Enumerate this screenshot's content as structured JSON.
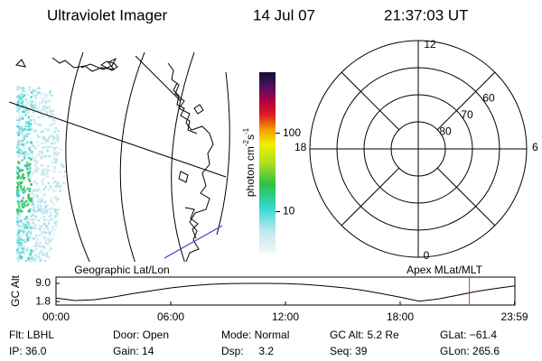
{
  "header": {
    "title": "Ultraviolet Imager",
    "date": "14 Jul 07",
    "time": "21:37:03 UT"
  },
  "map": {
    "label": "Geographic Lat/Lon"
  },
  "colorbar": {
    "label": [
      "photon cm",
      "-2",
      "s",
      "-1"
    ],
    "log": true,
    "range": [
      3,
      600
    ],
    "ticks": [
      10,
      100
    ]
  },
  "polar": {
    "label": "Apex MLat/MLT",
    "mlt_labels": [
      "12",
      "6",
      "0",
      "18"
    ],
    "lat_range": [
      90,
      50
    ],
    "lat_ticks": [
      80,
      70,
      60
    ]
  },
  "altitude_plot": {
    "ylabel": "GC Alt",
    "xlim": [
      0,
      24
    ],
    "ylim": [
      0.4,
      11.5
    ],
    "yticks": [
      {
        "value": 9,
        "label": "9.0"
      },
      {
        "value": 1.8,
        "label": "1.8"
      }
    ],
    "xticks": [
      {
        "value": 0,
        "label": "00:00"
      },
      {
        "value": 6,
        "label": "06:00"
      },
      {
        "value": 12,
        "label": "12:00"
      },
      {
        "value": 18,
        "label": "18:00"
      },
      {
        "value": 23.98,
        "label": "23:59"
      }
    ],
    "x": [
      0,
      1,
      2,
      3,
      4,
      5,
      6,
      7,
      8,
      9,
      10,
      11,
      12,
      13,
      14,
      15,
      16,
      17,
      18,
      19,
      20,
      21,
      22,
      23,
      24
    ],
    "values": [
      3.2,
      2.2,
      2.5,
      3.6,
      4.9,
      6.1,
      7.2,
      8.0,
      8.6,
      8.9,
      9.0,
      9.0,
      8.9,
      8.6,
      8.0,
      7.3,
      6.3,
      5.0,
      3.5,
      1.9,
      2.8,
      4.3,
      5.8,
      7.0,
      8.0
    ],
    "current_time": 21.62,
    "current_color": "#d03030"
  },
  "footer": {
    "rows": [
      [
        "Flt: LBHL",
        "Door: Open",
        "Mode: Normal",
        "GC Alt: 5.2 Re",
        "GLat: −61.4"
      ],
      [
        "IP: 36.0",
        "Gain: 14",
        "Dsp:     3.2",
        "Seq: 39",
        "GLon: 265.6"
      ]
    ]
  }
}
